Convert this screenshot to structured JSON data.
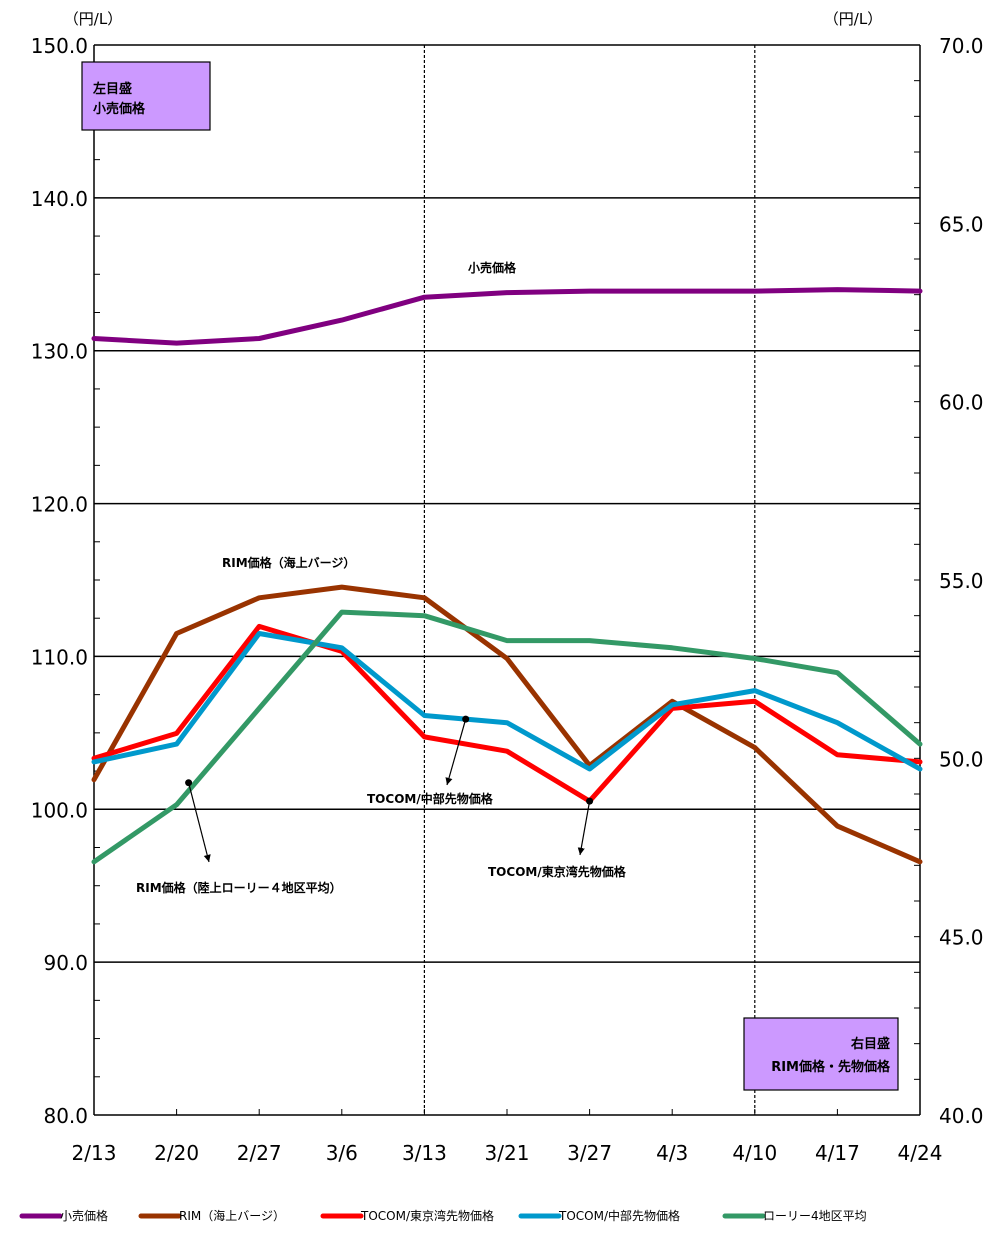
{
  "chart_data": {
    "type": "line",
    "categories": [
      "2/13",
      "2/20",
      "2/27",
      "3/6",
      "3/13",
      "3/21",
      "3/27",
      "4/3",
      "4/10",
      "4/17",
      "4/24"
    ],
    "left_axis": {
      "unit": "（円/L）",
      "range": [
        80,
        150
      ],
      "ticks": [
        "150.0",
        "140.0",
        "130.0",
        "120.0",
        "110.0",
        "100.0",
        "90.0",
        "80.0"
      ],
      "box_label": [
        "左目盛",
        "小売価格"
      ]
    },
    "right_axis": {
      "unit": "（円/L）",
      "range": [
        40,
        70
      ],
      "ticks": [
        "70.0",
        "65.0",
        "60.0",
        "55.0",
        "50.0",
        "45.0",
        "40.0"
      ],
      "box_label": [
        "右目盛",
        "RIM価格・先物価格"
      ]
    },
    "series": [
      {
        "name": "小売価格",
        "axis": "left",
        "color": "#800080",
        "values": [
          130.8,
          130.5,
          130.8,
          132.0,
          133.5,
          133.8,
          133.9,
          133.9,
          133.9,
          134.0,
          133.9
        ]
      },
      {
        "name": "RIM（海上バージ）",
        "axis": "right",
        "color": "#993300",
        "values": [
          49.4,
          53.5,
          54.5,
          54.8,
          54.5,
          52.8,
          49.8,
          51.6,
          50.3,
          48.1,
          47.1
        ]
      },
      {
        "name": "TOCOM/東京湾先物価格",
        "axis": "right",
        "color": "#ff0000",
        "values": [
          50.0,
          50.7,
          53.7,
          53.0,
          50.6,
          50.2,
          48.8,
          51.4,
          51.6,
          50.1,
          49.9
        ]
      },
      {
        "name": "TOCOM/中部先物価格",
        "axis": "right",
        "color": "#0099cc",
        "values": [
          49.9,
          50.4,
          53.5,
          53.1,
          51.2,
          51.0,
          49.7,
          51.5,
          51.9,
          51.0,
          49.7
        ]
      },
      {
        "name": "ローリー4地区平均",
        "axis": "right",
        "color": "#339966",
        "values": [
          47.1,
          48.7,
          51.4,
          54.1,
          54.0,
          53.3,
          53.3,
          53.1,
          52.8,
          52.4,
          50.4
        ]
      }
    ],
    "annotations": [
      {
        "text": "小売価格",
        "series": 0
      },
      {
        "text": "RIM価格（海上バージ）",
        "series": 1
      },
      {
        "text": "TOCOM/中部先物価格",
        "series": 3,
        "pointer": 4
      },
      {
        "text": "TOCOM/東京湾先物価格",
        "series": 2,
        "pointer": 6
      },
      {
        "text": "RIM価格（陸上ローリー４地区平均）",
        "series": 4,
        "pointer": 1
      }
    ],
    "legend": "bottom",
    "grid": "horizontal major lines, vertical dashed lines at 3/13 and 4/10",
    "box_color": "#cc99ff"
  }
}
